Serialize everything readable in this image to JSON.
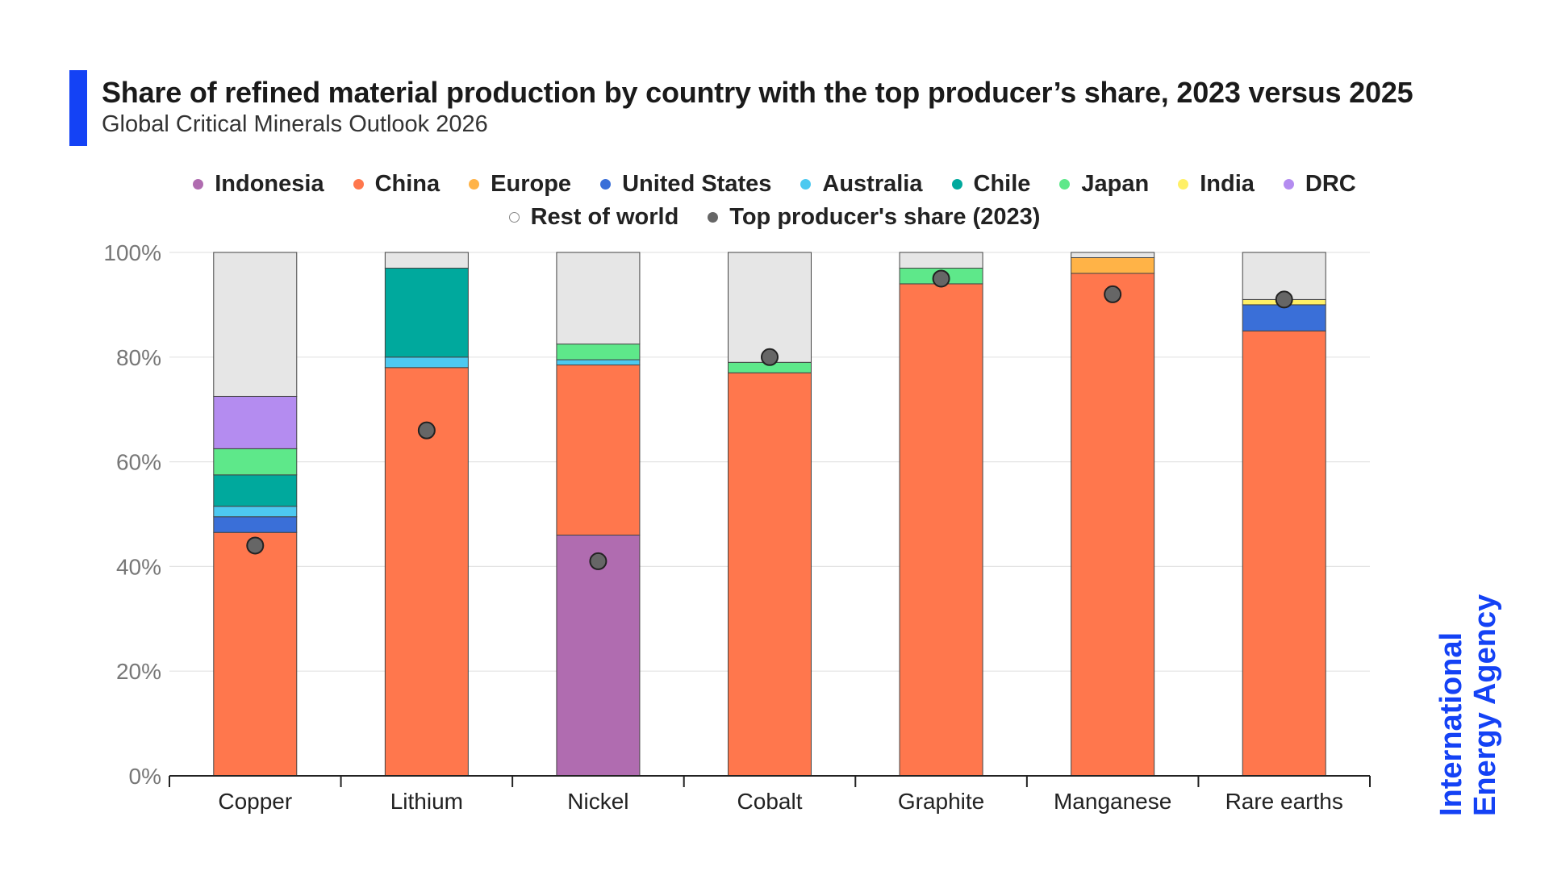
{
  "header": {
    "title": "Share of refined material production by country with the top producer’s share, 2023 versus 2025",
    "subtitle": "Global Critical Minerals Outlook 2026"
  },
  "logo": {
    "line1": "International",
    "line2": "Energy Agency",
    "color": "#1442f5"
  },
  "legend": {
    "row1": [
      {
        "label": "Indonesia",
        "color": "#b06cb0"
      },
      {
        "label": "China",
        "color": "#ff774d"
      },
      {
        "label": "Europe",
        "color": "#ffb347"
      },
      {
        "label": "United States",
        "color": "#3a6fd8"
      },
      {
        "label": "Australia",
        "color": "#4dc9f0"
      },
      {
        "label": "Chile",
        "color": "#00a99d"
      },
      {
        "label": "Japan",
        "color": "#5ee88a"
      },
      {
        "label": "India",
        "color": "#fff066"
      },
      {
        "label": "DRC",
        "color": "#b48cf0"
      }
    ],
    "row2": [
      {
        "label": "Rest of world",
        "color": "#ffffff"
      },
      {
        "label": "Top producer's share (2023)",
        "color": "#666666"
      }
    ]
  },
  "chart_data": {
    "type": "bar",
    "stacked": true,
    "categories": [
      "Copper",
      "Lithium",
      "Nickel",
      "Cobalt",
      "Graphite",
      "Manganese",
      "Rare earths"
    ],
    "ylim": [
      0,
      100
    ],
    "yticks": [
      "0%",
      "20%",
      "40%",
      "60%",
      "80%",
      "100%"
    ],
    "grid": true,
    "legend_position": "top",
    "series": [
      {
        "name": "Indonesia",
        "color": "#b06cb0",
        "values": [
          0,
          0,
          46,
          0,
          0,
          0,
          0
        ]
      },
      {
        "name": "China",
        "color": "#ff774d",
        "values": [
          46.5,
          78,
          32.5,
          77,
          94,
          96,
          85
        ]
      },
      {
        "name": "Europe",
        "color": "#ffb347",
        "values": [
          0,
          0,
          0,
          0,
          0,
          3,
          0
        ]
      },
      {
        "name": "United States",
        "color": "#3a6fd8",
        "values": [
          3,
          0,
          0,
          0,
          0,
          0,
          5
        ]
      },
      {
        "name": "Australia",
        "color": "#4dc9f0",
        "values": [
          2,
          2,
          1,
          0,
          0,
          0,
          0
        ]
      },
      {
        "name": "Chile",
        "color": "#00a99d",
        "values": [
          6,
          17,
          0,
          0,
          0,
          0,
          0
        ]
      },
      {
        "name": "Japan",
        "color": "#5ee88a",
        "values": [
          5,
          0,
          3,
          2,
          3,
          0,
          0
        ]
      },
      {
        "name": "India",
        "color": "#fff066",
        "values": [
          0,
          0,
          0,
          0,
          0,
          0,
          1
        ]
      },
      {
        "name": "DRC",
        "color": "#b48cf0",
        "values": [
          10,
          0,
          0,
          0,
          0,
          0,
          0
        ]
      },
      {
        "name": "Rest of world",
        "color": "#e6e6e6",
        "values": [
          27.5,
          3,
          17.5,
          21,
          3,
          1,
          9
        ]
      }
    ],
    "top_producer_share_2023": {
      "name": "Top producer's share (2023)",
      "color": "#666666",
      "values": [
        44,
        66,
        41,
        80,
        95,
        92,
        91
      ]
    }
  }
}
